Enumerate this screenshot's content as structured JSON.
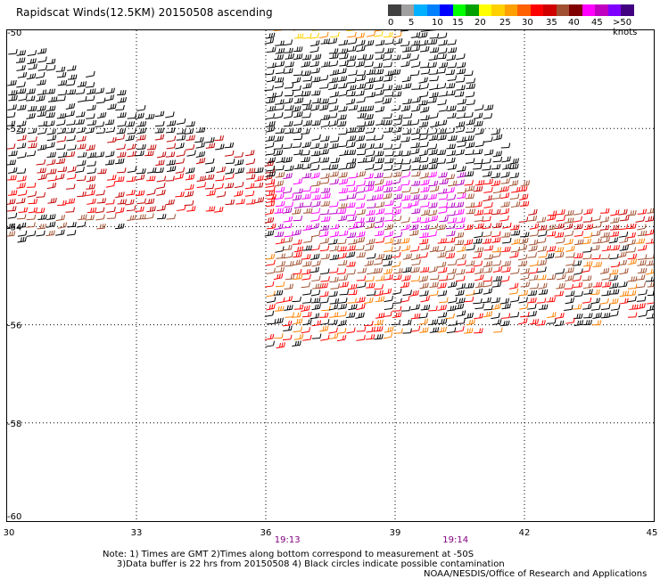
{
  "title": "Rapidscat Winds(12.5KM) 20150508 ascending",
  "legend": {
    "colors": [
      "#404040",
      "#a0a0a0",
      "#00b0ff",
      "#0080ff",
      "#0000ff",
      "#00ff00",
      "#00a000",
      "#ffff00",
      "#ffd000",
      "#ffa000",
      "#ff6000",
      "#ff0000",
      "#d00000",
      "#a05030",
      "#800000",
      "#ff00ff",
      "#c000c0",
      "#8000ff",
      "#400080"
    ],
    "labels": [
      "0",
      "5",
      "10",
      "15",
      "20",
      "25",
      "30",
      "35",
      "40",
      "45",
      ">50 knots"
    ]
  },
  "map": {
    "x_ticks": [
      "30",
      "33",
      "36",
      "39",
      "42",
      "45"
    ],
    "y_ticks": [
      "-50",
      "-52",
      "-54",
      "-56",
      "-58",
      "-60"
    ],
    "times": [
      "19:13",
      "19:14"
    ],
    "colors": {
      "black": "#000000",
      "red": "#ff0000",
      "darkred": "#c00000",
      "brown": "#a05030",
      "orange": "#ff8000",
      "magenta": "#ff00ff",
      "purple": "#b000c0",
      "yellow": "#ffd000"
    }
  },
  "notes": "Note: 1) Times are GMT 2)Times along bottom correspond to measurement at -50S\n     3)Data buffer is 22 hrs from 20150508 4) Black circles indicate possible contamination",
  "credit": "NOAA/NESDIS/Office of Research and Applications"
}
